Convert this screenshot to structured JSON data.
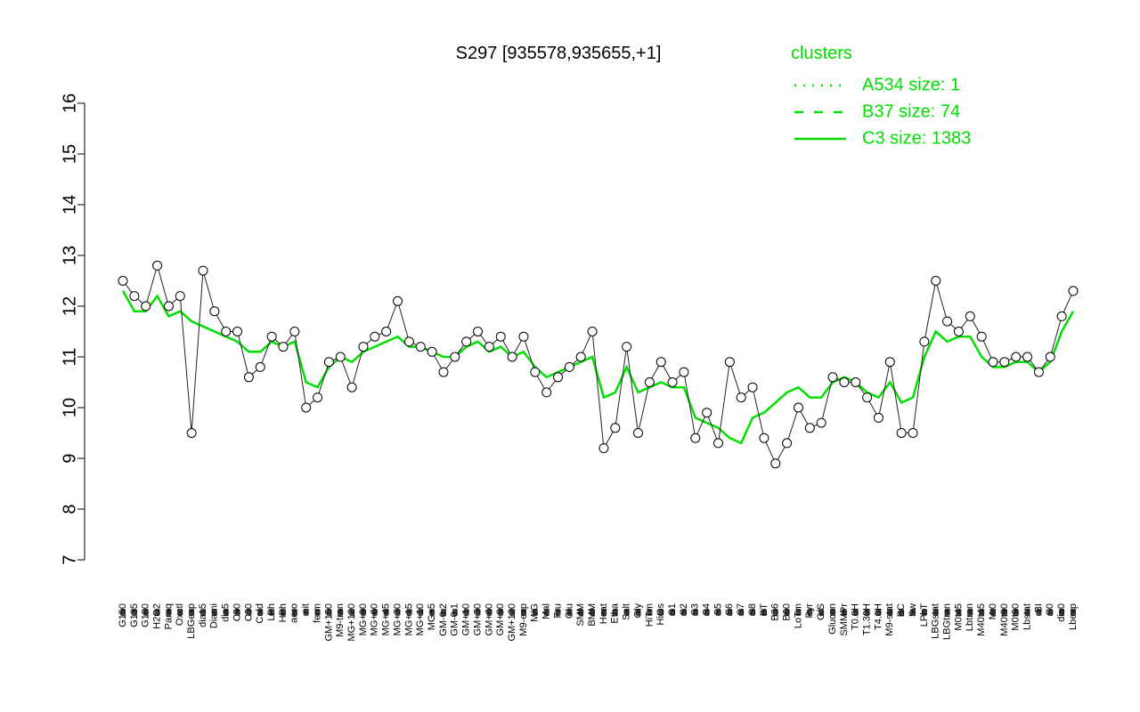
{
  "chart_data": {
    "type": "line",
    "title": "S297 [935578,935655,+1]",
    "categories": [
      "G150",
      "G135",
      "G180",
      "H2O2",
      "Paraq",
      "Oxctl",
      "LBGexp",
      "dia15",
      "Diami",
      "dia5",
      "C90",
      "C30",
      "Cold",
      "LPh",
      "HPh",
      "aero",
      "nit",
      "ferm",
      "GM+150",
      "M9-tran",
      "MG+120",
      "MG+90",
      "MG+60",
      "MG+45",
      "MG+30",
      "MG+15",
      "MG+10",
      "MG+5",
      "GM-0.2",
      "GM-0.1",
      "GM+10",
      "GM+30",
      "GM+60",
      "GM+90",
      "GM+120",
      "M9-exp",
      "M/G",
      "Mal",
      "Fru",
      "Glu",
      "SMM",
      "BMM",
      "Heat",
      "Etha",
      "Salt",
      "Gly",
      "HiTm",
      "HiOs",
      "S1",
      "S2",
      "S3",
      "S4",
      "S5",
      "S6",
      "S7",
      "S8",
      "BT",
      "B36",
      "B60",
      "LoTm",
      "Pyr",
      "G/S",
      "Glucon",
      "SMMPr",
      "T0.0H",
      "T1.30H",
      "T4.0H",
      "M9-stat",
      "BC",
      "Sw",
      "LPhT",
      "LBGstat",
      "LBGtran",
      "M0t45",
      "Lbtran",
      "M40t45",
      "Mt0",
      "M40t90",
      "M0t90",
      "Lbstat",
      "BI",
      "S0",
      "dia0",
      "Lbexp"
    ],
    "values": [
      12.5,
      12.2,
      12.0,
      12.8,
      12.0,
      12.2,
      9.5,
      12.7,
      11.9,
      11.5,
      11.5,
      10.6,
      10.8,
      11.4,
      11.2,
      11.5,
      10.0,
      10.2,
      10.9,
      11.0,
      10.4,
      11.2,
      11.4,
      11.5,
      12.1,
      11.3,
      11.2,
      11.1,
      10.7,
      11.0,
      11.3,
      11.5,
      11.2,
      11.4,
      11.0,
      11.4,
      10.7,
      10.3,
      10.6,
      10.8,
      11.0,
      11.5,
      9.2,
      9.6,
      11.2,
      9.5,
      10.5,
      10.9,
      10.5,
      10.7,
      9.4,
      9.9,
      9.3,
      10.9,
      10.2,
      10.4,
      9.4,
      8.9,
      9.3,
      10.0,
      9.6,
      9.7,
      10.6,
      10.5,
      10.5,
      10.2,
      9.8,
      10.9,
      9.5,
      9.5,
      11.3,
      12.5,
      11.7,
      11.5,
      11.8,
      11.4,
      10.9,
      10.9,
      11.0,
      11.0,
      10.7,
      11.0,
      11.8,
      12.3
    ],
    "series": [
      {
        "color": "#00e000",
        "values": [
          12.3,
          11.9,
          11.9,
          12.2,
          11.8,
          11.9,
          11.7,
          11.6,
          11.5,
          11.4,
          11.3,
          11.1,
          11.1,
          11.3,
          11.2,
          11.3,
          10.5,
          10.4,
          10.8,
          11.0,
          10.9,
          11.1,
          11.2,
          11.3,
          11.4,
          11.2,
          11.2,
          11.1,
          11.0,
          11.0,
          11.2,
          11.3,
          11.1,
          11.2,
          11.0,
          11.1,
          10.8,
          10.6,
          10.7,
          10.8,
          10.9,
          11.0,
          10.2,
          10.3,
          10.8,
          10.3,
          10.4,
          10.5,
          10.4,
          10.4,
          9.8,
          9.7,
          9.6,
          9.4,
          9.3,
          9.8,
          9.9,
          10.1,
          10.3,
          10.4,
          10.2,
          10.2,
          10.5,
          10.6,
          10.5,
          10.3,
          10.2,
          10.5,
          10.1,
          10.2,
          11.0,
          11.5,
          11.3,
          11.4,
          11.4,
          11.0,
          10.8,
          10.8,
          10.9,
          10.9,
          10.7,
          10.9,
          11.5,
          11.9
        ]
      }
    ],
    "ylim": [
      7,
      16
    ],
    "yticks": [
      7,
      8,
      9,
      10,
      11,
      12,
      13,
      14,
      15,
      16
    ],
    "legend": {
      "title": "clusters",
      "color": "#00e000",
      "entries": [
        {
          "label": "A534 size: 1",
          "dash": "dotted"
        },
        {
          "label": "B37 size: 74",
          "dash": "dashed"
        },
        {
          "label": "C3 size: 1383",
          "dash": "solid"
        }
      ]
    }
  }
}
